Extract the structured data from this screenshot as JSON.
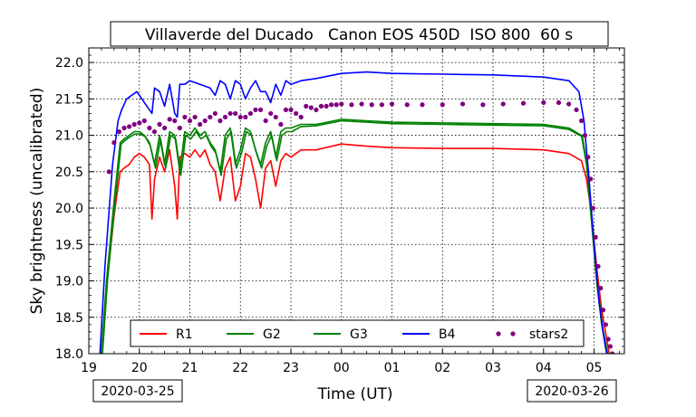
{
  "chart_data": {
    "type": "line",
    "title": "Villaverde del Ducado   Canon EOS 450D  ISO 800  60 s",
    "xlabel": "Time (UT)",
    "ylabel": "Sky brightness (uncalibrated)",
    "ylim": [
      18.0,
      22.2
    ],
    "xlim": [
      19.0,
      29.6
    ],
    "x_tick_labels": [
      "19",
      "20",
      "21",
      "22",
      "23",
      "00",
      "01",
      "02",
      "03",
      "04",
      "05"
    ],
    "y_tick_labels": [
      "18.0",
      "18.5",
      "19.0",
      "19.5",
      "20.0",
      "20.5",
      "21.0",
      "21.5",
      "22.0"
    ],
    "date_labels": [
      "2020-03-25",
      "2020-03-26"
    ],
    "grid": true,
    "legend_position": "lower-center",
    "series": [
      {
        "name": "R1",
        "color": "#ff0000",
        "style": "line",
        "x": [
          19.25,
          19.35,
          19.5,
          19.62,
          19.7,
          19.8,
          19.9,
          20.0,
          20.1,
          20.2,
          20.25,
          20.3,
          20.4,
          20.5,
          20.6,
          20.7,
          20.75,
          20.8,
          20.9,
          21.0,
          21.1,
          21.2,
          21.3,
          21.4,
          21.5,
          21.6,
          21.7,
          21.8,
          21.9,
          22.0,
          22.1,
          22.2,
          22.3,
          22.4,
          22.5,
          22.6,
          22.7,
          22.8,
          22.9,
          23.0,
          23.2,
          23.5,
          24.0,
          24.5,
          25.0,
          26.0,
          27.0,
          28.0,
          28.5,
          28.75,
          28.85,
          28.95,
          29.05,
          29.15,
          29.25,
          29.3
        ],
        "y": [
          18.0,
          18.9,
          19.9,
          20.5,
          20.55,
          20.6,
          20.7,
          20.75,
          20.7,
          20.6,
          19.85,
          20.4,
          20.7,
          20.5,
          20.8,
          20.3,
          19.85,
          20.7,
          20.75,
          20.7,
          20.8,
          20.7,
          20.8,
          20.6,
          20.5,
          20.1,
          20.55,
          20.7,
          20.1,
          20.3,
          20.75,
          20.7,
          20.4,
          20.0,
          20.55,
          20.65,
          20.3,
          20.65,
          20.75,
          20.7,
          20.8,
          20.8,
          20.88,
          20.85,
          20.83,
          20.82,
          20.82,
          20.8,
          20.75,
          20.65,
          20.4,
          19.9,
          19.2,
          18.6,
          18.2,
          18.0
        ]
      },
      {
        "name": "G2",
        "color": "#008000",
        "style": "line",
        "x": [
          19.25,
          19.35,
          19.5,
          19.62,
          19.7,
          19.8,
          19.9,
          20.0,
          20.1,
          20.2,
          20.3,
          20.4,
          20.5,
          20.6,
          20.7,
          20.8,
          20.9,
          21.0,
          21.1,
          21.2,
          21.3,
          21.4,
          21.5,
          21.6,
          21.7,
          21.8,
          21.9,
          22.0,
          22.1,
          22.2,
          22.3,
          22.4,
          22.5,
          22.6,
          22.7,
          22.8,
          22.9,
          23.0,
          23.2,
          23.5,
          24.0,
          24.5,
          25.0,
          26.0,
          27.0,
          28.0,
          28.5,
          28.75,
          28.85,
          28.95,
          29.05,
          29.15,
          29.25,
          29.3
        ],
        "y": [
          18.0,
          19.0,
          20.1,
          20.9,
          20.95,
          21.0,
          21.05,
          21.05,
          21.0,
          20.9,
          20.6,
          21.0,
          20.6,
          21.05,
          21.0,
          20.5,
          21.05,
          21.0,
          21.1,
          21.0,
          21.05,
          20.9,
          20.8,
          20.5,
          21.0,
          21.1,
          20.6,
          20.8,
          21.1,
          21.05,
          20.8,
          20.6,
          20.9,
          21.05,
          20.7,
          21.05,
          21.1,
          21.1,
          21.15,
          21.15,
          21.22,
          21.2,
          21.18,
          21.17,
          21.16,
          21.15,
          21.1,
          21.0,
          20.6,
          19.8,
          19.0,
          18.4,
          18.0,
          18.0
        ]
      },
      {
        "name": "G3",
        "color": "#008000",
        "style": "line",
        "x": [
          19.27,
          19.37,
          19.52,
          19.64,
          19.72,
          19.82,
          19.92,
          20.02,
          20.12,
          20.22,
          20.32,
          20.42,
          20.52,
          20.62,
          20.72,
          20.82,
          20.92,
          21.02,
          21.12,
          21.22,
          21.32,
          21.42,
          21.52,
          21.62,
          21.72,
          21.82,
          21.92,
          22.02,
          22.12,
          22.22,
          22.32,
          22.42,
          22.52,
          22.62,
          22.72,
          22.82,
          22.92,
          23.02,
          23.2,
          23.5,
          24.0,
          24.5,
          25.0,
          26.0,
          27.0,
          28.0,
          28.5,
          28.77,
          28.87,
          28.97,
          29.07,
          29.17,
          29.27,
          29.32
        ],
        "y": [
          18.0,
          19.0,
          20.1,
          20.88,
          20.93,
          20.98,
          21.02,
          21.02,
          20.98,
          20.85,
          20.55,
          20.95,
          20.55,
          21.0,
          20.95,
          20.45,
          21.0,
          20.95,
          21.05,
          20.95,
          21.0,
          20.85,
          20.75,
          20.45,
          20.95,
          21.05,
          20.55,
          20.75,
          21.05,
          21.0,
          20.75,
          20.55,
          20.85,
          21.0,
          20.65,
          21.0,
          21.05,
          21.05,
          21.12,
          21.13,
          21.2,
          21.18,
          21.16,
          21.15,
          21.14,
          21.13,
          21.08,
          20.98,
          20.55,
          19.75,
          18.95,
          18.35,
          18.0,
          18.0
        ]
      },
      {
        "name": "B4",
        "color": "#0000ff",
        "style": "line",
        "x": [
          19.22,
          19.32,
          19.47,
          19.58,
          19.65,
          19.75,
          19.85,
          19.95,
          20.05,
          20.15,
          20.25,
          20.3,
          20.4,
          20.5,
          20.6,
          20.7,
          20.75,
          20.8,
          20.9,
          21.0,
          21.2,
          21.4,
          21.5,
          21.6,
          21.7,
          21.8,
          21.9,
          22.0,
          22.1,
          22.2,
          22.3,
          22.4,
          22.5,
          22.6,
          22.7,
          22.8,
          22.9,
          23.0,
          23.2,
          23.5,
          24.0,
          24.5,
          25.0,
          26.0,
          27.0,
          28.0,
          28.5,
          28.7,
          28.8,
          28.9,
          29.0,
          29.1,
          29.2,
          29.25
        ],
        "y": [
          18.0,
          19.2,
          20.6,
          21.2,
          21.35,
          21.5,
          21.55,
          21.6,
          21.5,
          21.4,
          21.3,
          21.65,
          21.6,
          21.4,
          21.7,
          21.3,
          21.25,
          21.7,
          21.7,
          21.75,
          21.7,
          21.65,
          21.55,
          21.75,
          21.7,
          21.5,
          21.75,
          21.7,
          21.5,
          21.65,
          21.75,
          21.6,
          21.6,
          21.45,
          21.7,
          21.55,
          21.75,
          21.7,
          21.75,
          21.78,
          21.85,
          21.87,
          21.85,
          21.84,
          21.83,
          21.8,
          21.75,
          21.6,
          21.2,
          20.4,
          19.5,
          18.7,
          18.2,
          18.0
        ]
      },
      {
        "name": "stars2",
        "color": "#800080",
        "style": "points",
        "x": [
          19.4,
          19.5,
          19.6,
          19.7,
          19.8,
          19.9,
          20.0,
          20.1,
          20.2,
          20.3,
          20.4,
          20.5,
          20.6,
          20.7,
          20.8,
          20.9,
          21.0,
          21.1,
          21.2,
          21.3,
          21.4,
          21.5,
          21.6,
          21.7,
          21.8,
          21.9,
          22.0,
          22.1,
          22.2,
          22.3,
          22.4,
          22.5,
          22.6,
          22.7,
          22.8,
          22.9,
          23.0,
          23.1,
          23.2,
          23.3,
          23.4,
          23.5,
          23.6,
          23.7,
          23.8,
          23.9,
          24.0,
          24.2,
          24.4,
          24.6,
          24.8,
          25.0,
          25.3,
          25.6,
          26.0,
          26.4,
          26.8,
          27.2,
          27.6,
          28.0,
          28.3,
          28.5,
          28.65,
          28.75,
          28.82,
          28.88,
          28.93,
          28.98,
          29.03,
          29.08,
          29.13,
          29.18,
          29.23,
          29.28,
          29.32,
          29.36
        ],
        "y": [
          20.5,
          20.9,
          21.05,
          21.1,
          21.12,
          21.15,
          21.17,
          21.2,
          21.1,
          21.05,
          21.15,
          21.1,
          21.22,
          21.2,
          21.1,
          21.25,
          21.2,
          21.25,
          21.15,
          21.2,
          21.25,
          21.3,
          21.2,
          21.25,
          21.3,
          21.3,
          21.25,
          21.25,
          21.3,
          21.35,
          21.35,
          21.2,
          21.3,
          21.25,
          21.15,
          21.35,
          21.35,
          21.3,
          21.25,
          21.4,
          21.38,
          21.35,
          21.4,
          21.4,
          21.42,
          21.42,
          21.43,
          21.42,
          21.43,
          21.42,
          21.42,
          21.43,
          21.42,
          21.42,
          21.42,
          21.43,
          21.42,
          21.43,
          21.44,
          21.45,
          21.45,
          21.43,
          21.35,
          21.2,
          21.0,
          20.7,
          20.4,
          20.0,
          19.6,
          19.2,
          18.9,
          18.6,
          18.4,
          18.2,
          18.1,
          18.0
        ]
      }
    ]
  }
}
